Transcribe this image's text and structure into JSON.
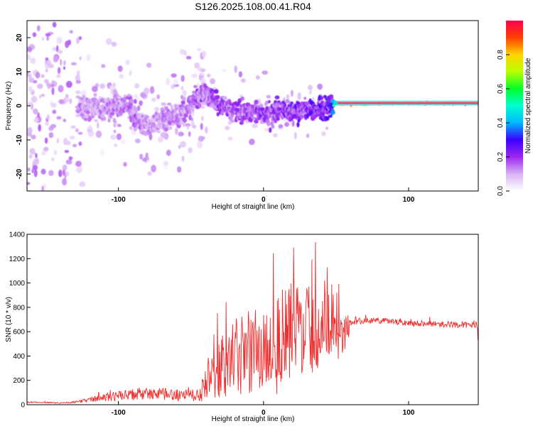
{
  "figure": {
    "title": "S126.2025.108.00.41.R04"
  },
  "chart_data": [
    {
      "type": "heatmap",
      "xlabel": "Height of straight line (km)",
      "ylabel": "Frequency (Hz)",
      "xlim": [
        -163,
        148
      ],
      "ylim": [
        -25,
        25
      ],
      "xticks": [
        -100,
        0,
        100
      ],
      "yticks": [
        -20,
        -10,
        0,
        10,
        20
      ],
      "grid": false,
      "colorbar": {
        "label": "Normalized spectral amplitude",
        "range": [
          0,
          1
        ],
        "ticks": [
          0.0,
          0.2,
          0.4,
          0.6,
          0.8
        ],
        "colormap": [
          "#ffffff",
          "#d9b3f5",
          "#9c27f0",
          "#3a00ff",
          "#00b7ff",
          "#00ffd0",
          "#00ff2a",
          "#b8ff00",
          "#ffd400",
          "#ff4000",
          "#ff0050"
        ]
      },
      "ridge": {
        "x": [
          -125,
          -110,
          -95,
          -85,
          -78,
          -70,
          -60,
          -50,
          -45,
          -40,
          -35,
          -30,
          -25,
          -20,
          -10,
          0,
          10,
          20,
          30,
          40,
          47,
          50,
          60,
          70,
          80,
          90,
          100,
          120,
          148
        ],
        "frequency": [
          0,
          -1,
          0,
          -5,
          -6,
          -4,
          -3,
          0,
          3,
          4,
          2,
          0,
          -1,
          -1,
          -2,
          -2,
          -2,
          -2,
          -1,
          -1,
          0,
          0.5,
          0.5,
          0.5,
          0.7,
          0.8,
          0.8,
          0.8,
          0.8
        ],
        "amplitude": [
          0.25,
          0.25,
          0.3,
          0.28,
          0.25,
          0.25,
          0.28,
          0.3,
          0.35,
          0.3,
          0.35,
          0.4,
          0.35,
          0.35,
          0.35,
          0.4,
          0.4,
          0.45,
          0.45,
          0.5,
          0.55,
          0.85,
          0.95,
          0.7,
          0.95,
          1.0,
          1.0,
          1.0,
          1.0
        ]
      }
    },
    {
      "type": "line",
      "xlabel": "Height of straight line (km)",
      "ylabel": "SNR (10 * v/v)",
      "xlim": [
        -163,
        148
      ],
      "ylim": [
        0,
        1400
      ],
      "xticks": [
        -100,
        0,
        100
      ],
      "yticks": [
        0,
        200,
        400,
        600,
        800,
        1000,
        1200,
        1400
      ],
      "grid": false,
      "series": [
        {
          "color": "#ee3030",
          "x": [
            -163,
            -150,
            -140,
            -130,
            -120,
            -110,
            -100,
            -90,
            -80,
            -70,
            -60,
            -50,
            -45,
            -40,
            -35,
            -30,
            -25,
            -20,
            -15,
            -10,
            -5,
            0,
            5,
            10,
            15,
            20,
            25,
            30,
            35,
            40,
            45,
            50,
            55,
            58,
            60,
            70,
            80,
            90,
            100,
            110,
            120,
            130,
            140,
            147,
            148
          ],
          "values": [
            20,
            18,
            15,
            20,
            40,
            60,
            70,
            80,
            90,
            85,
            80,
            90,
            110,
            160,
            230,
            290,
            340,
            380,
            410,
            430,
            440,
            460,
            480,
            500,
            540,
            600,
            660,
            630,
            600,
            640,
            660,
            600,
            580,
            620,
            680,
            690,
            690,
            680,
            670,
            670,
            660,
            660,
            655,
            650,
            500
          ],
          "amplitude": [
            5,
            5,
            5,
            8,
            20,
            35,
            40,
            50,
            50,
            50,
            50,
            60,
            90,
            140,
            200,
            250,
            290,
            320,
            340,
            360,
            380,
            400,
            420,
            450,
            450,
            420,
            400,
            380,
            340,
            300,
            260,
            240,
            180,
            120,
            30,
            25,
            25,
            25,
            25,
            25,
            25,
            25,
            25,
            25,
            60
          ]
        }
      ]
    }
  ]
}
